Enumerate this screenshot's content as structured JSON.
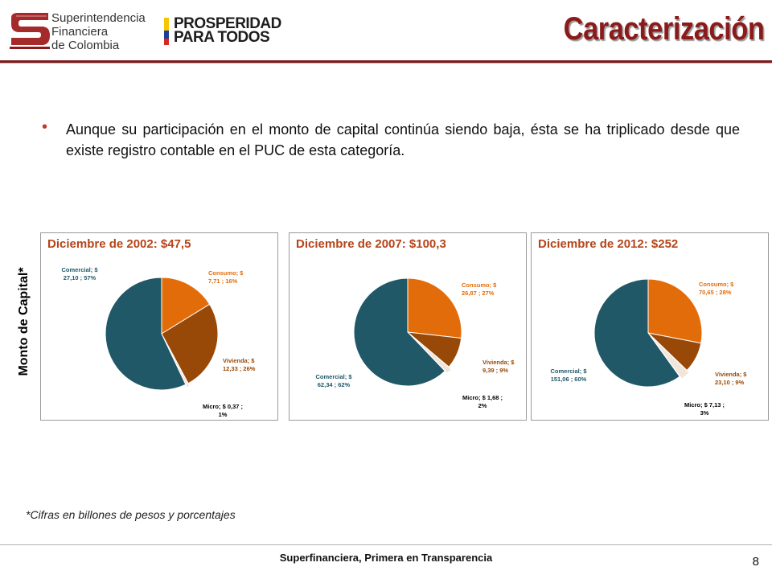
{
  "header": {
    "logo_lines": [
      "Superintendencia",
      "Financiera",
      "de Colombia"
    ],
    "partner_logo_lines": [
      "PROSPERIDAD",
      "PARA TODOS"
    ],
    "title": "Caracterización"
  },
  "bullet": {
    "text": "Aunque su participación en el monto de capital continúa siendo baja, ésta se ha triplicado desde que existe registro contable en el PUC de esta categoría."
  },
  "y_axis_label": "Monto de Capital*",
  "chart_data": [
    {
      "type": "pie",
      "title": "Diciembre de 2002: $47,5",
      "series": [
        {
          "name": "Consumo",
          "value": 7.71,
          "percent": 16,
          "label_lines": [
            "Consumo; $",
            "7,71 ; 16%"
          ],
          "color": "#e36c0a"
        },
        {
          "name": "Vivienda",
          "value": 12.33,
          "percent": 26,
          "label_lines": [
            "Vivienda; $",
            "12,33 ; 26%"
          ],
          "color": "#984807"
        },
        {
          "name": "Micro",
          "value": 0.37,
          "percent": 1,
          "label_lines": [
            "Micro; $ 0,37 ;",
            "1%"
          ],
          "color": "#f2e6da"
        },
        {
          "name": "Comercial",
          "value": 27.1,
          "percent": 57,
          "label_lines": [
            "Comercial; $",
            "27,10 ; 57%"
          ],
          "color": "#215868"
        }
      ]
    },
    {
      "type": "pie",
      "title": "Diciembre de 2007: $100,3",
      "series": [
        {
          "name": "Consumo",
          "value": 26.87,
          "percent": 27,
          "label_lines": [
            "Consumo; $",
            "26,87 ; 27%"
          ],
          "color": "#e36c0a"
        },
        {
          "name": "Vivienda",
          "value": 9.39,
          "percent": 9,
          "label_lines": [
            "Vivienda; $",
            "9,39 ; 9%"
          ],
          "color": "#984807"
        },
        {
          "name": "Micro",
          "value": 1.68,
          "percent": 2,
          "label_lines": [
            "Micro; $ 1,68 ;",
            "2%"
          ],
          "color": "#f2e6da"
        },
        {
          "name": "Comercial",
          "value": 62.34,
          "percent": 62,
          "label_lines": [
            "Comercial; $",
            "62,34 ; 62%"
          ],
          "color": "#215868"
        }
      ]
    },
    {
      "type": "pie",
      "title": "Diciembre de 2012: $252",
      "series": [
        {
          "name": "Consumo",
          "value": 70.65,
          "percent": 28,
          "label_lines": [
            "Consumo; $",
            "70,65 ; 28%"
          ],
          "color": "#e36c0a"
        },
        {
          "name": "Vivienda",
          "value": 23.1,
          "percent": 9,
          "label_lines": [
            "Vivienda; $",
            "23,10 ; 9%"
          ],
          "color": "#984807"
        },
        {
          "name": "Micro",
          "value": 7.13,
          "percent": 3,
          "label_lines": [
            "Micro; $ 7,13 ;",
            "3%"
          ],
          "color": "#f2e6da"
        },
        {
          "name": "Comercial",
          "value": 151.06,
          "percent": 60,
          "label_lines": [
            "Comercial; $",
            "151,06 ; 60%"
          ],
          "color": "#215868"
        }
      ]
    }
  ],
  "footnote": "*Cifras en billones de pesos y porcentajes",
  "footer": {
    "text": "Superfinanciera, Primera en Transparencia",
    "page_number": "8"
  }
}
